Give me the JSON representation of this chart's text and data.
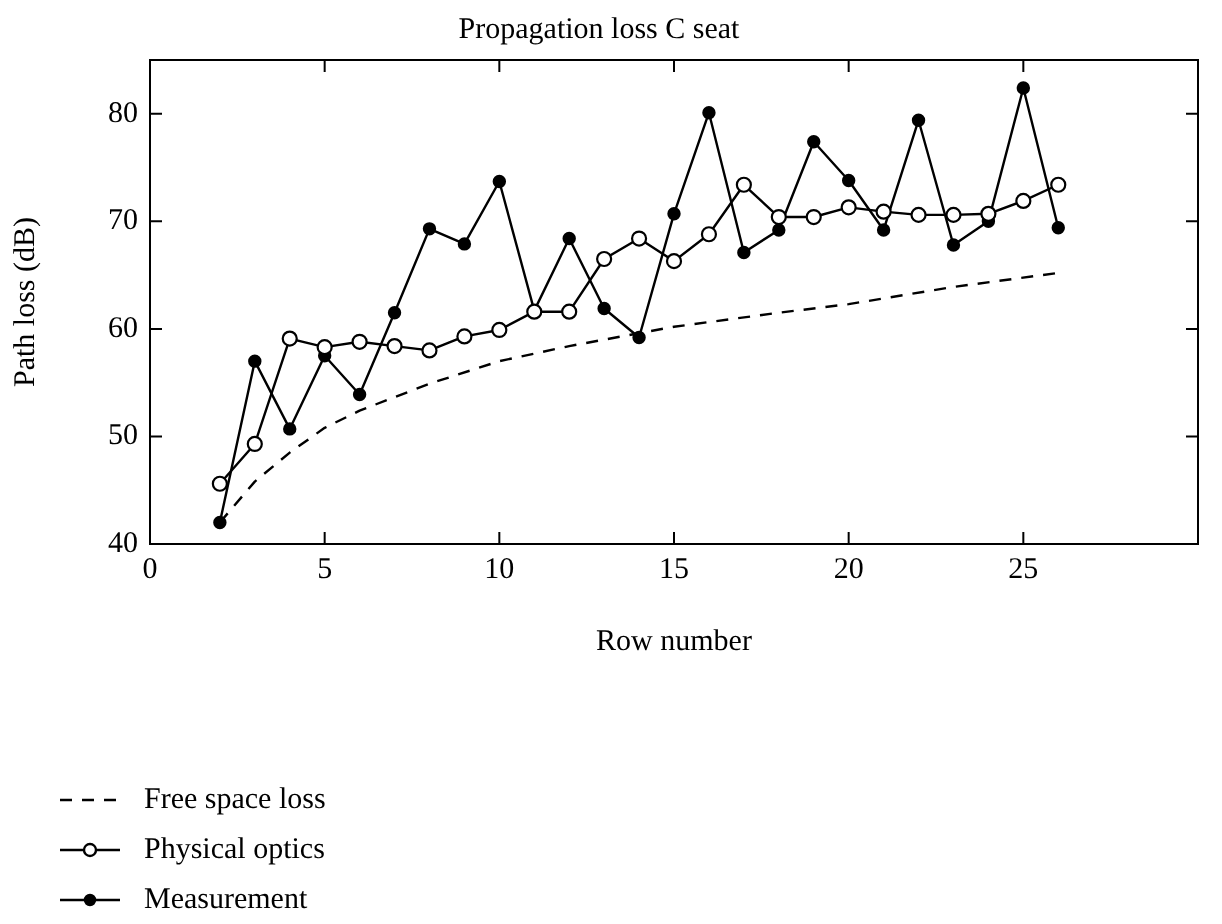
{
  "chart_data": {
    "type": "line",
    "title": "Propagation loss C seat",
    "xlabel": "Row number",
    "ylabel": "Path loss (dB)",
    "xlim": [
      0,
      30
    ],
    "xticks": [
      0,
      5,
      10,
      15,
      20,
      25
    ],
    "ylim": [
      40,
      85
    ],
    "yticks": [
      40,
      50,
      60,
      70,
      80
    ],
    "grid": false,
    "legend": "bottom left",
    "series": [
      {
        "name": "Free space loss",
        "color": "#000000",
        "marker": "none",
        "line_style": "dashed",
        "x": [
          2,
          3,
          4,
          5,
          6,
          8,
          10,
          12,
          15,
          18,
          20,
          23,
          26
        ],
        "values": [
          42,
          45.8,
          48.5,
          50.8,
          52.4,
          54.9,
          57.0,
          58.4,
          60.2,
          61.5,
          62.3,
          63.9,
          65.2
        ]
      },
      {
        "name": "Physical optics",
        "color": "#000000",
        "marker": "circle",
        "line_style": "solid",
        "x": [
          2,
          3,
          4,
          5,
          6,
          7,
          8,
          9,
          10,
          11,
          12,
          13,
          14,
          15,
          16,
          17,
          18,
          19,
          20,
          21,
          22,
          23,
          24,
          25,
          26
        ],
        "values": [
          45.6,
          49.3,
          59.1,
          58.3,
          58.8,
          58.4,
          58.0,
          59.3,
          59.9,
          61.6,
          61.6,
          66.5,
          68.4,
          66.3,
          68.8,
          73.4,
          70.4,
          70.4,
          71.3,
          70.9,
          70.6,
          70.6,
          70.7,
          71.9,
          73.4
        ]
      },
      {
        "name": "Measurement",
        "color": "#000000",
        "marker": "circle",
        "line_style": "solid",
        "x": [
          2,
          3,
          4,
          5,
          6,
          7,
          8,
          9,
          10,
          11,
          12,
          13,
          14,
          15,
          16,
          17,
          18,
          19,
          20,
          21,
          22,
          23,
          24,
          25,
          26
        ],
        "values": [
          42.0,
          57.0,
          50.7,
          57.5,
          53.9,
          61.5,
          69.3,
          67.9,
          73.7,
          61.7,
          68.4,
          61.9,
          59.2,
          70.7,
          80.1,
          67.1,
          69.2,
          77.4,
          73.8,
          69.2,
          79.4,
          67.8,
          70.0,
          82.4,
          69.4
        ]
      }
    ]
  }
}
